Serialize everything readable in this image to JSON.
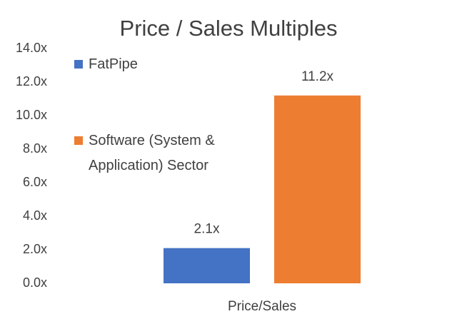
{
  "chart_data": {
    "type": "bar",
    "title": "Price / Sales Multiples",
    "categories": [
      "Price/Sales"
    ],
    "series": [
      {
        "name": "FatPipe",
        "color": "#4472c4",
        "values": [
          2.1
        ],
        "value_labels": [
          "2.1x"
        ]
      },
      {
        "name": "Software (System & Application) Sector",
        "color": "#ed7d31",
        "values": [
          11.2
        ],
        "value_labels": [
          "11.2x"
        ]
      }
    ],
    "ylim": [
      0,
      14
    ],
    "yticks": [
      {
        "value": 0,
        "label": "0.0x"
      },
      {
        "value": 2,
        "label": "2.0x"
      },
      {
        "value": 4,
        "label": "4.0x"
      },
      {
        "value": 6,
        "label": "6.0x"
      },
      {
        "value": 8,
        "label": "8.0x"
      },
      {
        "value": 10,
        "label": "10.0x"
      },
      {
        "value": 12,
        "label": "12.0x"
      },
      {
        "value": 14,
        "label": "14.0x"
      }
    ],
    "grid": false,
    "legend": "left"
  }
}
